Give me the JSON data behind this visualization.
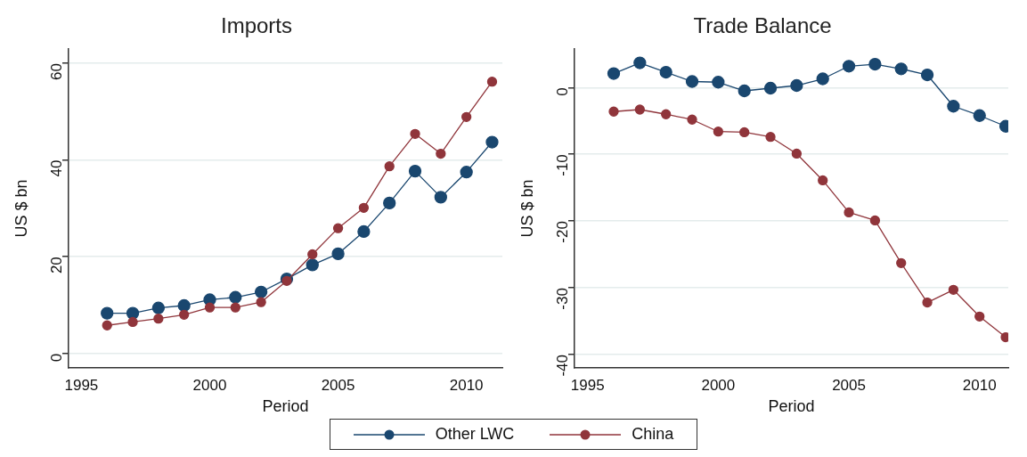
{
  "chart_data": [
    {
      "type": "line",
      "title": "Imports",
      "xlabel": "Period",
      "ylabel": "US $ bn",
      "x": [
        1996,
        1997,
        1998,
        1999,
        2000,
        2001,
        2002,
        2003,
        2004,
        2005,
        2006,
        2007,
        2008,
        2009,
        2010,
        2011
      ],
      "series": [
        {
          "name": "Other LWC",
          "color": "#1a476f",
          "values": [
            8.3,
            8.3,
            9.4,
            9.9,
            11.1,
            11.6,
            12.7,
            15.4,
            18.3,
            20.6,
            25.2,
            31.1,
            37.7,
            32.3,
            37.5,
            43.7
          ]
        },
        {
          "name": "China",
          "color": "#90353b",
          "values": [
            5.8,
            6.5,
            7.2,
            8.0,
            9.5,
            9.5,
            10.6,
            15.0,
            20.5,
            25.9,
            30.1,
            38.7,
            45.4,
            41.3,
            48.9,
            56.2
          ]
        }
      ],
      "xlim": [
        1994.5,
        2011.4
      ],
      "xticks": [
        1995,
        2000,
        2005,
        2010
      ],
      "ylim": [
        -3,
        63
      ],
      "yticks": [
        0,
        20,
        40,
        60
      ],
      "grid": "y",
      "legend": "bottom",
      "marker": "circle",
      "line_style": "solid"
    },
    {
      "type": "line",
      "title": "Trade Balance",
      "xlabel": "Period",
      "ylabel": "US $ bn",
      "x": [
        1996,
        1997,
        1998,
        1999,
        2000,
        2001,
        2002,
        2003,
        2004,
        2005,
        2006,
        2007,
        2008,
        2009,
        2010,
        2011
      ],
      "series": [
        {
          "color": "#1a476f",
          "values": [
            2.1,
            3.7,
            2.3,
            0.9,
            0.8,
            -0.5,
            -0.1,
            0.3,
            1.3,
            3.2,
            3.5,
            2.8,
            1.9,
            -2.8,
            -4.2,
            -5.8
          ]
        },
        {
          "color": "#90353b",
          "values": [
            -3.6,
            -3.3,
            -4.0,
            -4.8,
            -6.6,
            -6.7,
            -7.4,
            -9.9,
            -13.9,
            -18.7,
            -19.9,
            -26.3,
            -32.2,
            -30.3,
            -34.3,
            -37.4
          ]
        }
      ],
      "xlim": [
        1994.5,
        2011.1
      ],
      "xticks": [
        1995,
        2000,
        2005,
        2010
      ],
      "ylim": [
        -42,
        5.8
      ],
      "yticks": [
        -40,
        -30,
        -20,
        -10,
        0
      ],
      "grid": "y",
      "marker": "circle",
      "line_style": "solid"
    }
  ]
}
